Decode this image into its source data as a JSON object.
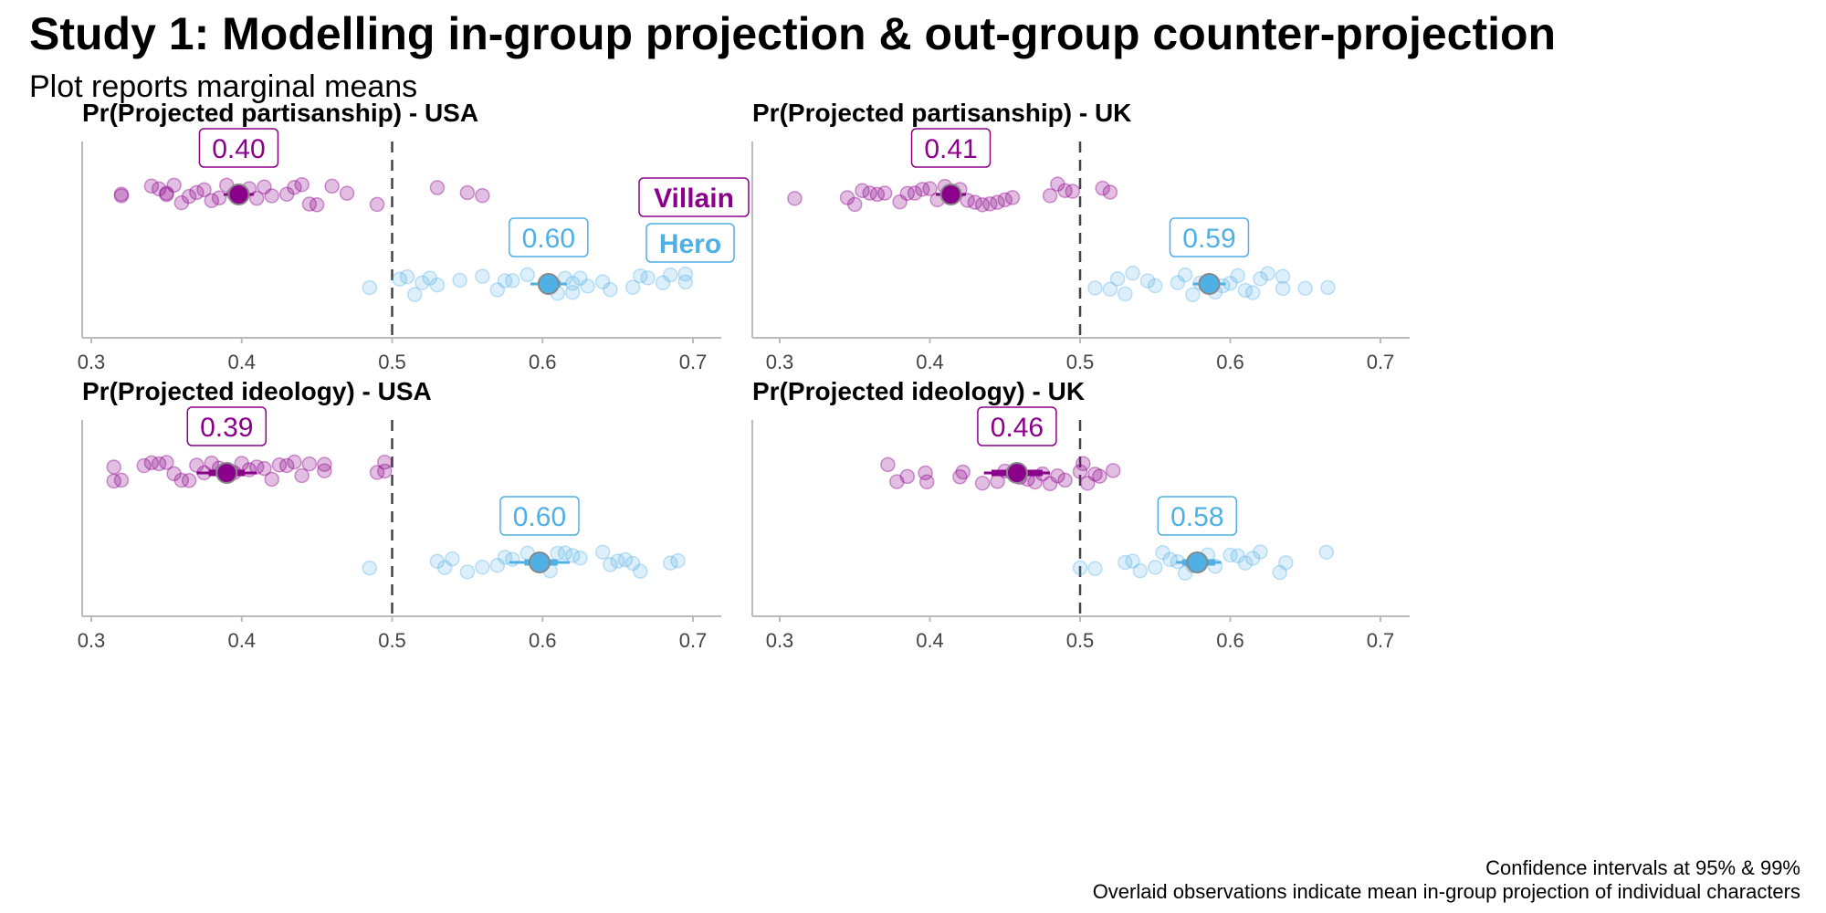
{
  "title": "Study 1: Modelling in-group projection & out-group counter-projection",
  "subtitle": "Plot reports marginal means",
  "caption": [
    "Confidence intervals at 95% & 99%",
    "Overlaid observations indicate mean in-group projection of individual characters"
  ],
  "colors": {
    "villain": "#8B008B",
    "hero": "#4FB0E6"
  },
  "chart_data": [
    {
      "type": "scatter",
      "title": "Pr(Projected partisanship) - USA",
      "xlim": [
        0.28,
        0.72
      ],
      "xticks": [
        "0.3",
        "0.4",
        "0.5",
        "0.6",
        "0.7"
      ],
      "reference_line": 0.5,
      "legend": {
        "entries": [
          "Villain",
          "Hero"
        ],
        "placement": "top-center"
      },
      "series": [
        {
          "name": "Villain",
          "mean": 0.398,
          "label": "0.40",
          "ci95": [
            0.392,
            0.404
          ],
          "ci99": [
            0.388,
            0.408
          ],
          "observations": [
            0.32,
            0.32,
            0.34,
            0.345,
            0.35,
            0.35,
            0.355,
            0.36,
            0.365,
            0.37,
            0.375,
            0.38,
            0.385,
            0.39,
            0.395,
            0.405,
            0.41,
            0.415,
            0.42,
            0.43,
            0.435,
            0.44,
            0.445,
            0.45,
            0.46,
            0.47,
            0.49,
            0.53,
            0.55,
            0.56
          ]
        },
        {
          "name": "Hero",
          "mean": 0.604,
          "label": "0.60",
          "ci95": [
            0.598,
            0.612
          ],
          "ci99": [
            0.592,
            0.616
          ],
          "observations": [
            0.485,
            0.505,
            0.51,
            0.515,
            0.52,
            0.525,
            0.53,
            0.545,
            0.56,
            0.57,
            0.575,
            0.58,
            0.59,
            0.61,
            0.615,
            0.62,
            0.62,
            0.625,
            0.63,
            0.64,
            0.645,
            0.66,
            0.665,
            0.67,
            0.68,
            0.685,
            0.695,
            0.695
          ]
        }
      ]
    },
    {
      "type": "scatter",
      "title": "Pr(Projected partisanship) - UK",
      "xlim": [
        0.28,
        0.72
      ],
      "xticks": [
        "0.3",
        "0.4",
        "0.5",
        "0.6",
        "0.7"
      ],
      "reference_line": 0.5,
      "series": [
        {
          "name": "Villain",
          "mean": 0.414,
          "label": "0.41",
          "ci95": [
            0.408,
            0.42
          ],
          "ci99": [
            0.404,
            0.424
          ],
          "observations": [
            0.31,
            0.345,
            0.35,
            0.355,
            0.36,
            0.365,
            0.37,
            0.38,
            0.385,
            0.39,
            0.395,
            0.4,
            0.405,
            0.41,
            0.42,
            0.425,
            0.43,
            0.435,
            0.44,
            0.445,
            0.45,
            0.455,
            0.48,
            0.485,
            0.49,
            0.495,
            0.515,
            0.52
          ]
        },
        {
          "name": "Hero",
          "mean": 0.586,
          "label": "0.59",
          "ci95": [
            0.58,
            0.592
          ],
          "ci99": [
            0.575,
            0.597
          ],
          "observations": [
            0.51,
            0.52,
            0.525,
            0.53,
            0.535,
            0.545,
            0.55,
            0.565,
            0.57,
            0.575,
            0.58,
            0.59,
            0.595,
            0.6,
            0.605,
            0.61,
            0.615,
            0.62,
            0.625,
            0.635,
            0.635,
            0.65,
            0.665
          ]
        }
      ]
    },
    {
      "type": "scatter",
      "title": "Pr(Projected ideology) - USA",
      "xlim": [
        0.28,
        0.72
      ],
      "xticks": [
        "0.3",
        "0.4",
        "0.5",
        "0.6",
        "0.7"
      ],
      "reference_line": 0.5,
      "series": [
        {
          "name": "Villain",
          "mean": 0.39,
          "label": "0.39",
          "ci95": [
            0.378,
            0.402
          ],
          "ci99": [
            0.37,
            0.41
          ],
          "observations": [
            0.315,
            0.315,
            0.32,
            0.335,
            0.34,
            0.345,
            0.35,
            0.355,
            0.36,
            0.365,
            0.37,
            0.375,
            0.38,
            0.385,
            0.395,
            0.4,
            0.405,
            0.41,
            0.415,
            0.42,
            0.425,
            0.43,
            0.435,
            0.44,
            0.445,
            0.455,
            0.455,
            0.49,
            0.495,
            0.495
          ]
        },
        {
          "name": "Hero",
          "mean": 0.598,
          "label": "0.60",
          "ci95": [
            0.588,
            0.61
          ],
          "ci99": [
            0.578,
            0.618
          ],
          "observations": [
            0.485,
            0.53,
            0.535,
            0.54,
            0.55,
            0.56,
            0.57,
            0.575,
            0.58,
            0.59,
            0.605,
            0.61,
            0.615,
            0.62,
            0.625,
            0.64,
            0.645,
            0.65,
            0.655,
            0.66,
            0.665,
            0.685,
            0.69
          ]
        }
      ]
    },
    {
      "type": "scatter",
      "title": "Pr(Projected ideology) - UK",
      "xlim": [
        0.28,
        0.72
      ],
      "xticks": [
        "0.3",
        "0.4",
        "0.5",
        "0.6",
        "0.7"
      ],
      "reference_line": 0.5,
      "series": [
        {
          "name": "Villain",
          "mean": 0.458,
          "label": "0.46",
          "ci95": [
            0.441,
            0.475
          ],
          "ci99": [
            0.436,
            0.48
          ],
          "observations": [
            0.372,
            0.378,
            0.385,
            0.397,
            0.398,
            0.42,
            0.422,
            0.435,
            0.445,
            0.45,
            0.455,
            0.46,
            0.465,
            0.47,
            0.475,
            0.48,
            0.485,
            0.49,
            0.5,
            0.502,
            0.505,
            0.51,
            0.513,
            0.522
          ]
        },
        {
          "name": "Hero",
          "mean": 0.578,
          "label": "0.58",
          "ci95": [
            0.568,
            0.59
          ],
          "ci99": [
            0.564,
            0.594
          ],
          "observations": [
            0.5,
            0.51,
            0.53,
            0.535,
            0.54,
            0.55,
            0.555,
            0.56,
            0.565,
            0.57,
            0.575,
            0.585,
            0.59,
            0.6,
            0.605,
            0.61,
            0.615,
            0.62,
            0.633,
            0.637,
            0.664
          ]
        }
      ]
    }
  ]
}
